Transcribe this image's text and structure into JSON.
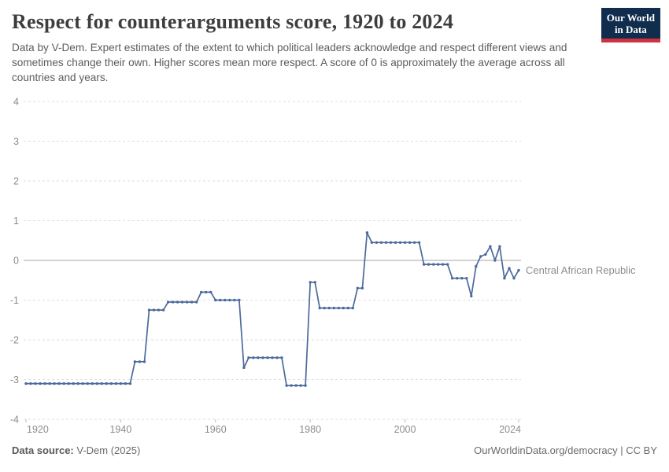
{
  "header": {
    "logo": {
      "line1": "Our World",
      "line2": "in Data",
      "bg_color": "#102d4e",
      "bar_color": "#cf323f"
    }
  },
  "chart_data": {
    "type": "line",
    "title": "Respect for counterarguments score, 1920 to 2024",
    "subtitle": "Data by V-Dem. Expert estimates of the extent to which political leaders acknowledge and respect different views and sometimes change their own. Higher scores mean more respect. A score of 0 is approximately the average across all countries and years.",
    "xlabel": "",
    "ylabel": "",
    "xlim": [
      1920,
      2024
    ],
    "ylim": [
      -4,
      4
    ],
    "xticks": [
      1920,
      1940,
      1960,
      1980,
      2000,
      2024
    ],
    "yticks": [
      4,
      3,
      2,
      1,
      0,
      -1,
      -2,
      -3,
      -4
    ],
    "grid": "horizontal-dashed",
    "zero_line": true,
    "legend_position": "end-of-line-label",
    "line_color": "#4c6a9c",
    "grid_color": "#dedede",
    "zero_line_color": "#a6a6a6",
    "series": [
      {
        "name": "Central African Republic",
        "points": [
          [
            1920,
            -3.1
          ],
          [
            1921,
            -3.1
          ],
          [
            1922,
            -3.1
          ],
          [
            1923,
            -3.1
          ],
          [
            1924,
            -3.1
          ],
          [
            1925,
            -3.1
          ],
          [
            1926,
            -3.1
          ],
          [
            1927,
            -3.1
          ],
          [
            1928,
            -3.1
          ],
          [
            1929,
            -3.1
          ],
          [
            1930,
            -3.1
          ],
          [
            1931,
            -3.1
          ],
          [
            1932,
            -3.1
          ],
          [
            1933,
            -3.1
          ],
          [
            1934,
            -3.1
          ],
          [
            1935,
            -3.1
          ],
          [
            1936,
            -3.1
          ],
          [
            1937,
            -3.1
          ],
          [
            1938,
            -3.1
          ],
          [
            1939,
            -3.1
          ],
          [
            1940,
            -3.1
          ],
          [
            1941,
            -3.1
          ],
          [
            1942,
            -3.1
          ],
          [
            1943,
            -2.55
          ],
          [
            1944,
            -2.55
          ],
          [
            1945,
            -2.55
          ],
          [
            1946,
            -1.25
          ],
          [
            1947,
            -1.25
          ],
          [
            1948,
            -1.25
          ],
          [
            1949,
            -1.25
          ],
          [
            1950,
            -1.05
          ],
          [
            1951,
            -1.05
          ],
          [
            1952,
            -1.05
          ],
          [
            1953,
            -1.05
          ],
          [
            1954,
            -1.05
          ],
          [
            1955,
            -1.05
          ],
          [
            1956,
            -1.05
          ],
          [
            1957,
            -0.8
          ],
          [
            1958,
            -0.8
          ],
          [
            1959,
            -0.8
          ],
          [
            1960,
            -1.0
          ],
          [
            1961,
            -1.0
          ],
          [
            1962,
            -1.0
          ],
          [
            1963,
            -1.0
          ],
          [
            1964,
            -1.0
          ],
          [
            1965,
            -1.0
          ],
          [
            1966,
            -2.7
          ],
          [
            1967,
            -2.45
          ],
          [
            1968,
            -2.45
          ],
          [
            1969,
            -2.45
          ],
          [
            1970,
            -2.45
          ],
          [
            1971,
            -2.45
          ],
          [
            1972,
            -2.45
          ],
          [
            1973,
            -2.45
          ],
          [
            1974,
            -2.45
          ],
          [
            1975,
            -3.15
          ],
          [
            1976,
            -3.15
          ],
          [
            1977,
            -3.15
          ],
          [
            1978,
            -3.15
          ],
          [
            1979,
            -3.15
          ],
          [
            1980,
            -0.55
          ],
          [
            1981,
            -0.55
          ],
          [
            1982,
            -1.2
          ],
          [
            1983,
            -1.2
          ],
          [
            1984,
            -1.2
          ],
          [
            1985,
            -1.2
          ],
          [
            1986,
            -1.2
          ],
          [
            1987,
            -1.2
          ],
          [
            1988,
            -1.2
          ],
          [
            1989,
            -1.2
          ],
          [
            1990,
            -0.7
          ],
          [
            1991,
            -0.7
          ],
          [
            1992,
            0.7
          ],
          [
            1993,
            0.45
          ],
          [
            1994,
            0.45
          ],
          [
            1995,
            0.45
          ],
          [
            1996,
            0.45
          ],
          [
            1997,
            0.45
          ],
          [
            1998,
            0.45
          ],
          [
            1999,
            0.45
          ],
          [
            2000,
            0.45
          ],
          [
            2001,
            0.45
          ],
          [
            2002,
            0.45
          ],
          [
            2003,
            0.45
          ],
          [
            2004,
            -0.1
          ],
          [
            2005,
            -0.1
          ],
          [
            2006,
            -0.1
          ],
          [
            2007,
            -0.1
          ],
          [
            2008,
            -0.1
          ],
          [
            2009,
            -0.1
          ],
          [
            2010,
            -0.45
          ],
          [
            2011,
            -0.45
          ],
          [
            2012,
            -0.45
          ],
          [
            2013,
            -0.45
          ],
          [
            2014,
            -0.9
          ],
          [
            2015,
            -0.15
          ],
          [
            2016,
            0.1
          ],
          [
            2017,
            0.15
          ],
          [
            2018,
            0.35
          ],
          [
            2019,
            0.0
          ],
          [
            2020,
            0.35
          ],
          [
            2021,
            -0.45
          ],
          [
            2022,
            -0.2
          ],
          [
            2023,
            -0.45
          ],
          [
            2024,
            -0.25
          ]
        ]
      }
    ]
  },
  "footer": {
    "source_label": "Data source:",
    "source_value": "V-Dem (2025)",
    "credit": "OurWorldinData.org/democracy | CC BY"
  }
}
